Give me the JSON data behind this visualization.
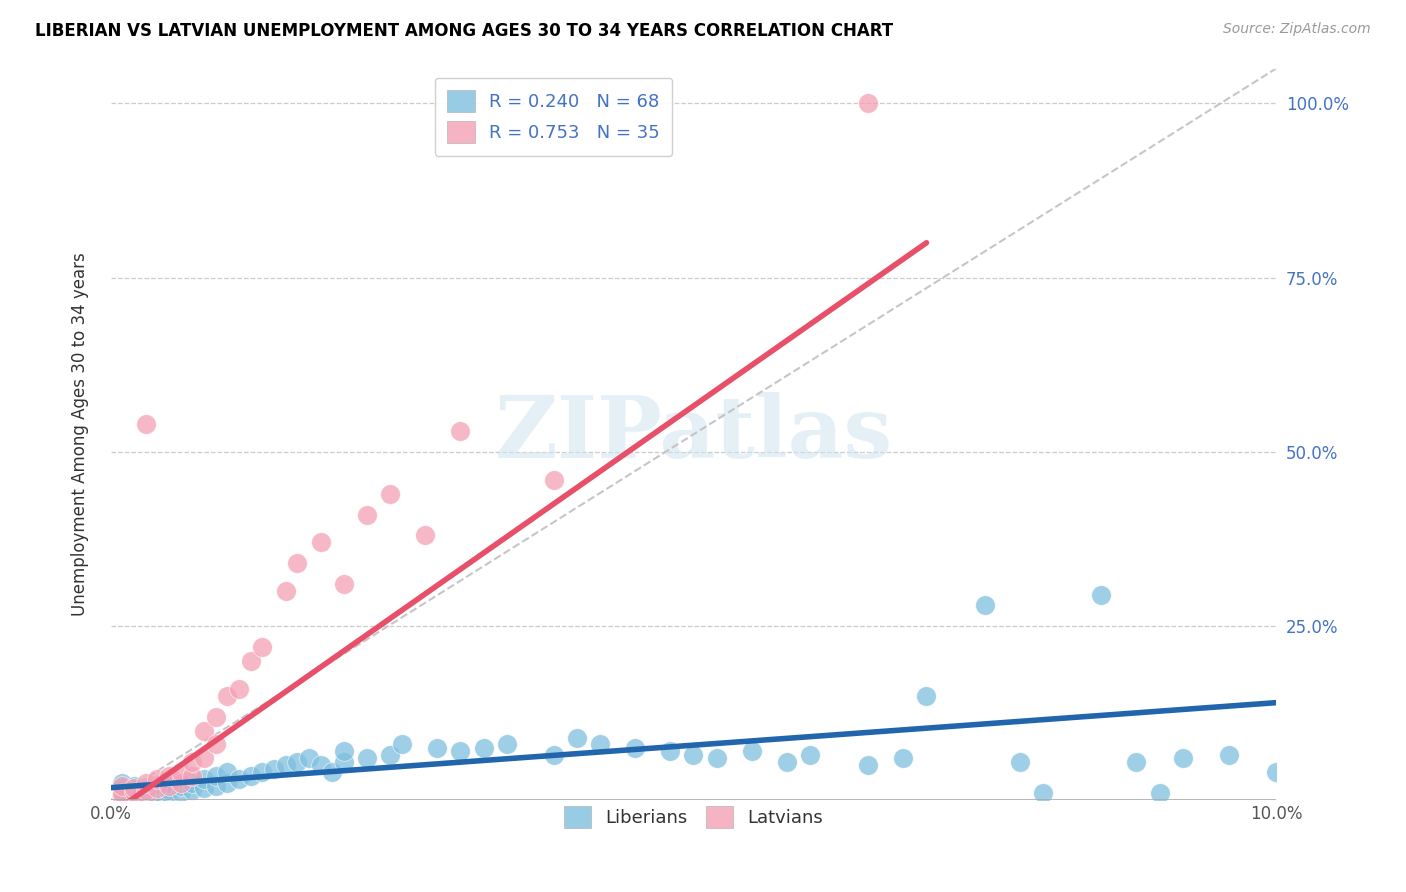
{
  "title": "LIBERIAN VS LATVIAN UNEMPLOYMENT AMONG AGES 30 TO 34 YEARS CORRELATION CHART",
  "source": "Source: ZipAtlas.com",
  "ylabel": "Unemployment Among Ages 30 to 34 years",
  "xlim": [
    0.0,
    0.1
  ],
  "ylim": [
    0.0,
    1.05
  ],
  "liberian_R": 0.24,
  "liberian_N": 68,
  "latvian_R": 0.753,
  "latvian_N": 35,
  "liberian_color": "#7fbfde",
  "latvian_color": "#f4a0b5",
  "liberian_line_color": "#2166ac",
  "latvian_line_color": "#e8506a",
  "trendline_dashed_color": "#c0c0c0",
  "watermark": "ZIPatlas",
  "lib_trend_x0": 0.0,
  "lib_trend_y0": 0.018,
  "lib_trend_x1": 0.1,
  "lib_trend_y1": 0.14,
  "lat_trend_x0": 0.0,
  "lat_trend_y0": -0.02,
  "lat_trend_x1": 0.07,
  "lat_trend_y1": 0.8,
  "liberian_x": [
    0.001,
    0.001,
    0.001,
    0.001,
    0.001,
    0.002,
    0.002,
    0.002,
    0.002,
    0.003,
    0.003,
    0.003,
    0.004,
    0.004,
    0.004,
    0.005,
    0.005,
    0.005,
    0.006,
    0.006,
    0.007,
    0.007,
    0.008,
    0.008,
    0.009,
    0.009,
    0.01,
    0.01,
    0.011,
    0.012,
    0.013,
    0.014,
    0.015,
    0.016,
    0.017,
    0.018,
    0.019,
    0.02,
    0.02,
    0.022,
    0.024,
    0.025,
    0.028,
    0.03,
    0.032,
    0.034,
    0.038,
    0.04,
    0.042,
    0.045,
    0.048,
    0.05,
    0.052,
    0.055,
    0.058,
    0.06,
    0.065,
    0.068,
    0.07,
    0.075,
    0.078,
    0.08,
    0.085,
    0.088,
    0.09,
    0.092,
    0.096,
    0.1
  ],
  "liberian_y": [
    0.005,
    0.008,
    0.012,
    0.018,
    0.025,
    0.006,
    0.01,
    0.015,
    0.02,
    0.007,
    0.012,
    0.018,
    0.008,
    0.013,
    0.022,
    0.01,
    0.015,
    0.025,
    0.012,
    0.02,
    0.015,
    0.025,
    0.018,
    0.03,
    0.02,
    0.035,
    0.025,
    0.04,
    0.03,
    0.035,
    0.04,
    0.045,
    0.05,
    0.055,
    0.06,
    0.05,
    0.04,
    0.055,
    0.07,
    0.06,
    0.065,
    0.08,
    0.075,
    0.07,
    0.075,
    0.08,
    0.065,
    0.09,
    0.08,
    0.075,
    0.07,
    0.065,
    0.06,
    0.07,
    0.055,
    0.065,
    0.05,
    0.06,
    0.15,
    0.28,
    0.055,
    0.01,
    0.295,
    0.055,
    0.01,
    0.06,
    0.065,
    0.04
  ],
  "latvian_x": [
    0.001,
    0.001,
    0.001,
    0.002,
    0.002,
    0.003,
    0.003,
    0.003,
    0.004,
    0.004,
    0.005,
    0.005,
    0.006,
    0.006,
    0.007,
    0.007,
    0.008,
    0.008,
    0.009,
    0.009,
    0.01,
    0.011,
    0.012,
    0.013,
    0.015,
    0.016,
    0.018,
    0.02,
    0.022,
    0.024,
    0.027,
    0.03,
    0.038,
    0.065,
    0.003
  ],
  "latvian_y": [
    0.006,
    0.01,
    0.02,
    0.012,
    0.018,
    0.008,
    0.015,
    0.025,
    0.018,
    0.03,
    0.02,
    0.035,
    0.025,
    0.04,
    0.035,
    0.055,
    0.06,
    0.1,
    0.08,
    0.12,
    0.15,
    0.16,
    0.2,
    0.22,
    0.3,
    0.34,
    0.37,
    0.31,
    0.41,
    0.44,
    0.38,
    0.53,
    0.46,
    1.0,
    0.54
  ]
}
